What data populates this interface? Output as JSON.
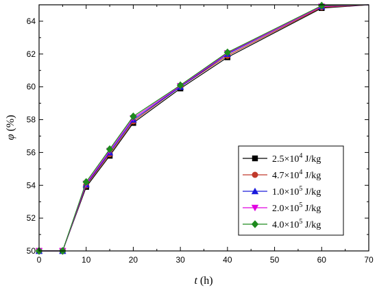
{
  "chart_data": {
    "type": "line",
    "title": "",
    "xlabel": {
      "symbol": "t",
      "unit": " (h)"
    },
    "ylabel": {
      "symbol": "φ",
      "unit": " (%)"
    },
    "xlim": [
      0,
      70
    ],
    "ylim": [
      50,
      65
    ],
    "xticks": [
      0,
      10,
      20,
      30,
      40,
      50,
      60,
      70
    ],
    "yticks": [
      50,
      52,
      54,
      56,
      58,
      60,
      62,
      64
    ],
    "grid": false,
    "legend_position": "lower-right",
    "x": [
      0,
      5,
      10,
      15,
      20,
      30,
      40,
      60,
      70
    ],
    "series": [
      {
        "name_mantissa": "2.5×10",
        "name_exp": "4",
        "name_unit": " J/kg",
        "color": "#000000",
        "marker": "square",
        "values": [
          50.0,
          50.0,
          53.9,
          55.8,
          57.8,
          59.9,
          61.8,
          64.8,
          65.0
        ]
      },
      {
        "name_mantissa": "4.7×10",
        "name_exp": "4",
        "name_unit": " J/kg",
        "color": "#c0392b",
        "marker": "circle",
        "values": [
          50.0,
          50.0,
          54.0,
          55.9,
          57.9,
          60.0,
          61.9,
          64.85,
          65.0
        ]
      },
      {
        "name_mantissa": "1.0×10",
        "name_exp": "5",
        "name_unit": " J/kg",
        "color": "#1a1adb",
        "marker": "triangle-up",
        "values": [
          50.0,
          50.0,
          54.05,
          56.0,
          58.0,
          60.0,
          62.0,
          64.9,
          65.0
        ]
      },
      {
        "name_mantissa": "2.0×10",
        "name_exp": "5",
        "name_unit": " J/kg",
        "color": "#e000e0",
        "marker": "triangle-down",
        "values": [
          50.0,
          50.0,
          54.1,
          56.1,
          58.1,
          60.05,
          62.05,
          64.9,
          65.0
        ]
      },
      {
        "name_mantissa": "4.0×10",
        "name_exp": "5",
        "name_unit": " J/kg",
        "color": "#1e8a1e",
        "marker": "diamond",
        "values": [
          50.0,
          50.0,
          54.2,
          56.2,
          58.2,
          60.1,
          62.1,
          64.95,
          65.0
        ]
      }
    ]
  }
}
